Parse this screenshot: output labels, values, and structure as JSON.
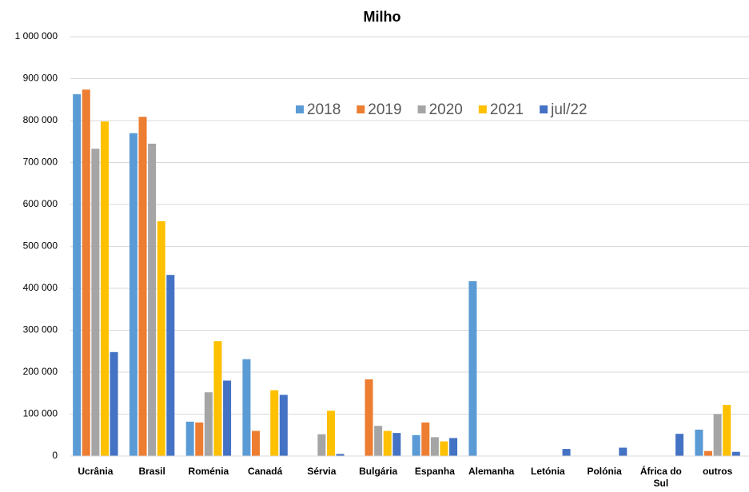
{
  "chart_data": {
    "type": "bar",
    "title": "Milho",
    "categories": [
      "Ucrânia",
      "Brasil",
      "Roménia",
      "Canadá",
      "Sérvia",
      "Bulgária",
      "Espanha",
      "Alemanha",
      "Letónia",
      "Polónia",
      "África do Sul",
      "outros"
    ],
    "series": [
      {
        "name": "2018",
        "color": "#5b9bd5",
        "values": [
          863000,
          770000,
          82000,
          231000,
          null,
          null,
          50000,
          417000,
          null,
          null,
          null,
          63000
        ]
      },
      {
        "name": "2019",
        "color": "#ed7d31",
        "values": [
          874000,
          809000,
          80000,
          60000,
          null,
          183000,
          80000,
          null,
          null,
          null,
          null,
          12000
        ]
      },
      {
        "name": "2020",
        "color": "#a5a5a5",
        "values": [
          733000,
          745000,
          152000,
          null,
          52000,
          72000,
          45000,
          null,
          null,
          null,
          null,
          100000
        ]
      },
      {
        "name": "2021",
        "color": "#ffc000",
        "values": [
          798000,
          560000,
          274000,
          157000,
          108000,
          60000,
          35000,
          null,
          null,
          null,
          null,
          122000
        ]
      },
      {
        "name": "jul/22",
        "color": "#4472c4",
        "values": [
          248000,
          432000,
          180000,
          146000,
          5000,
          55000,
          43000,
          null,
          17000,
          20000,
          53000,
          10000
        ]
      }
    ],
    "ylim": [
      0,
      1000000
    ],
    "yticks": [
      0,
      {
        "value": 100000,
        "label": "100 000"
      },
      {
        "value": 200000,
        "label": "200 000"
      },
      {
        "value": 300000,
        "label": "300 000"
      },
      {
        "value": 400000,
        "label": "400 000"
      },
      {
        "value": 500000,
        "label": "500 000"
      },
      {
        "value": 600000,
        "label": "600 000"
      },
      {
        "value": 700000,
        "label": "700 000"
      },
      {
        "value": 800000,
        "label": "800 000"
      },
      {
        "value": 900000,
        "label": "900 000"
      },
      {
        "value": 1000000,
        "label": "1 000 000"
      }
    ],
    "grid": true,
    "legend": "top"
  }
}
